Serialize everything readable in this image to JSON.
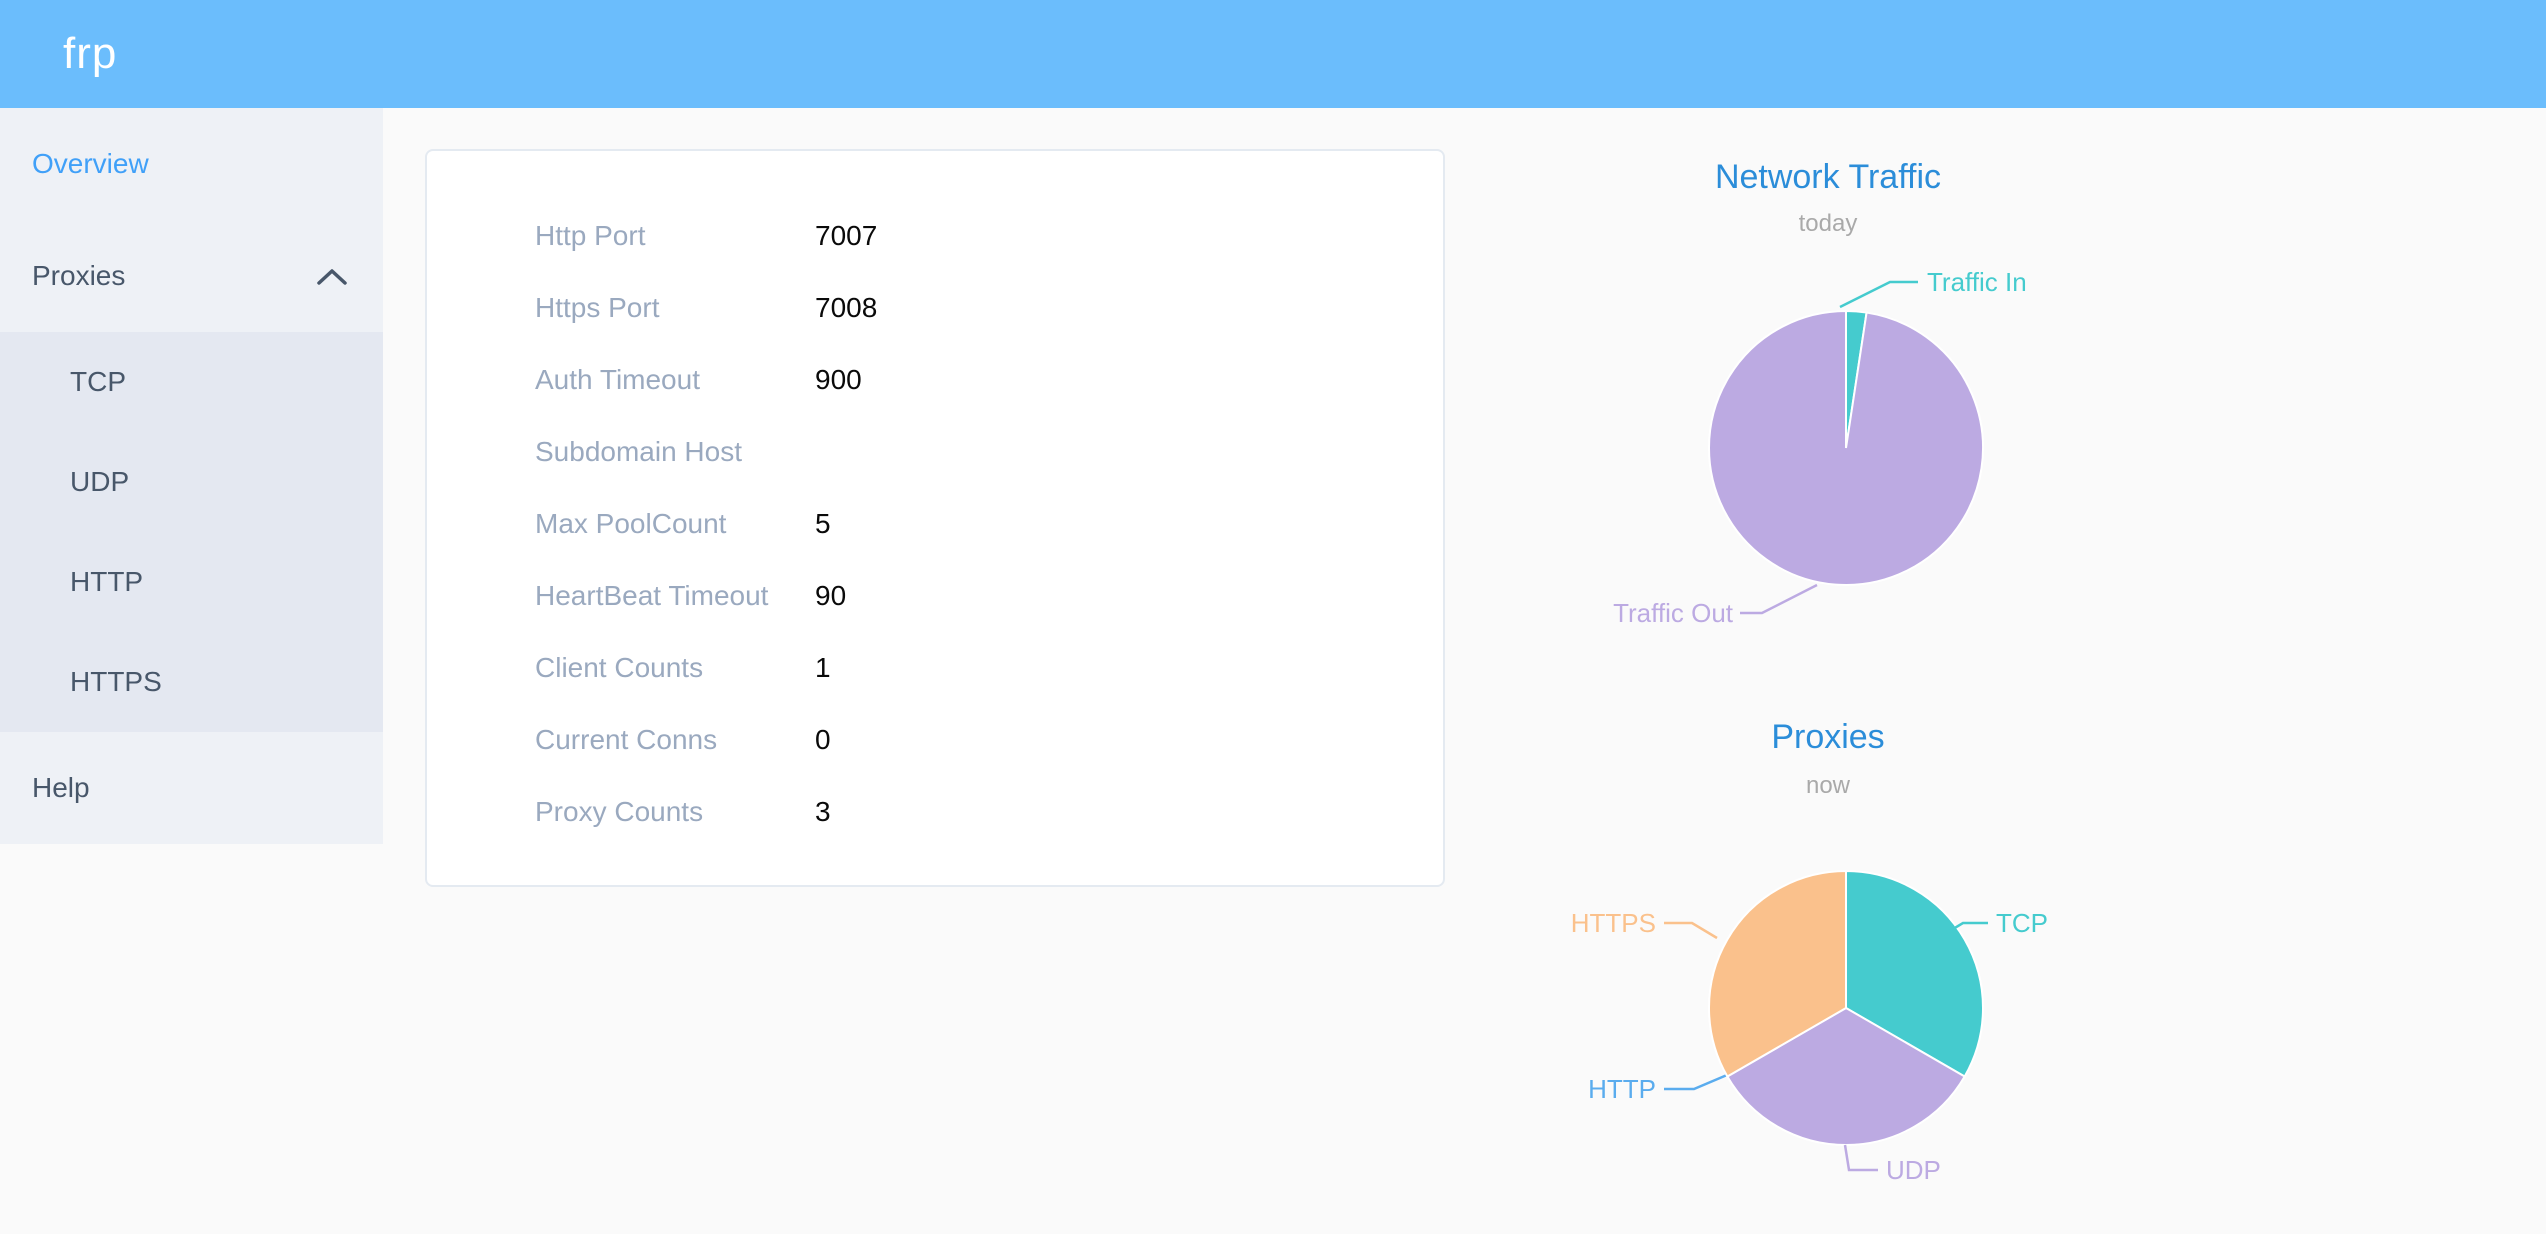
{
  "header": {
    "logo": "frp"
  },
  "sidebar": {
    "overview": {
      "label": "Overview"
    },
    "proxies": {
      "label": "Proxies",
      "expanded": true,
      "children": [
        "TCP",
        "UDP",
        "HTTP",
        "HTTPS"
      ]
    },
    "help": {
      "label": "Help"
    }
  },
  "overview_card": {
    "rows": [
      {
        "label": "Http Port",
        "value": "7007"
      },
      {
        "label": "Https Port",
        "value": "7008"
      },
      {
        "label": "Auth Timeout",
        "value": "900"
      },
      {
        "label": "Subdomain Host",
        "value": ""
      },
      {
        "label": "Max PoolCount",
        "value": "5"
      },
      {
        "label": "HeartBeat Timeout",
        "value": "90"
      },
      {
        "label": "Client Counts",
        "value": "1"
      },
      {
        "label": "Current Conns",
        "value": "0"
      },
      {
        "label": "Proxy Counts",
        "value": "3"
      }
    ]
  },
  "chart_data": [
    {
      "type": "pie",
      "title": "Network Traffic",
      "subtitle": "today",
      "legend_position": "callout-labels",
      "slices": [
        {
          "name": "Traffic In",
          "value": 2.4,
          "unit": "percent",
          "color": "#45cbce"
        },
        {
          "name": "Traffic Out",
          "value": 97.6,
          "unit": "percent",
          "color": "#bcaae2"
        }
      ]
    },
    {
      "type": "pie",
      "title": "Proxies",
      "subtitle": "now",
      "legend_position": "callout-labels",
      "slices": [
        {
          "name": "TCP",
          "value": 1,
          "color": "#45cbce"
        },
        {
          "name": "UDP",
          "value": 1,
          "color": "#bcaae2"
        },
        {
          "name": "HTTP",
          "value": 0,
          "color": "#5aacee"
        },
        {
          "name": "HTTPS",
          "value": 1,
          "color": "#fac18c"
        }
      ]
    }
  ],
  "colors": {
    "header_bg": "#6bbdfc",
    "sidebar_bg": "#eef1f6",
    "submenu_bg": "#e4e8f1",
    "sidebar_text": "#48576a",
    "sidebar_active": "#40a0f8",
    "chart_title": "#2b8dd9",
    "card_label": "#9aa9bf"
  }
}
